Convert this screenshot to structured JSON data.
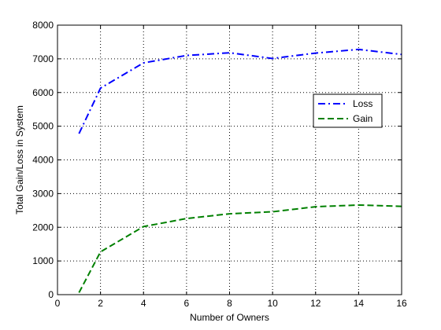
{
  "chart_data": {
    "type": "line",
    "xlabel": "Number of Owners",
    "ylabel": "Total Gain/Loss in System",
    "xlim": [
      0,
      16
    ],
    "ylim": [
      0,
      8000
    ],
    "xticks": [
      0,
      2,
      4,
      6,
      8,
      10,
      12,
      14,
      16
    ],
    "yticks": [
      0,
      1000,
      2000,
      3000,
      4000,
      5000,
      6000,
      7000,
      8000
    ],
    "grid": true,
    "legend_position": "right",
    "series": [
      {
        "name": "Loss",
        "color": "#0000ff",
        "line_style": "dash-dot",
        "x": [
          1,
          2,
          4,
          6,
          8,
          10,
          12,
          14,
          16
        ],
        "y": [
          4780,
          6130,
          6880,
          7100,
          7180,
          7010,
          7170,
          7280,
          7130
        ]
      },
      {
        "name": "Gain",
        "color": "#008000",
        "line_style": "dashed",
        "x": [
          1,
          2,
          4,
          6,
          8,
          10,
          12,
          14,
          16
        ],
        "y": [
          60,
          1270,
          2020,
          2260,
          2400,
          2460,
          2610,
          2660,
          2620
        ]
      }
    ]
  }
}
